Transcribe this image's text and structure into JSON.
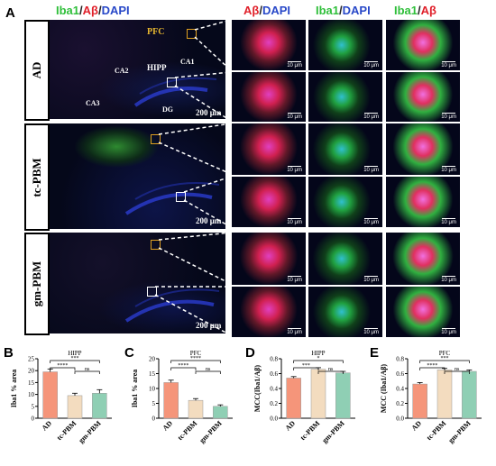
{
  "panel_a_label": "A",
  "column_headers": [
    {
      "parts": [
        {
          "text": "Iba1",
          "c": "green"
        },
        {
          "text": "/",
          "c": "slash"
        },
        {
          "text": "Aβ",
          "c": "red"
        },
        {
          "text": "/",
          "c": "slash"
        },
        {
          "text": "DAPI",
          "c": "blue"
        }
      ]
    },
    {
      "parts": [
        {
          "text": "Aβ",
          "c": "red"
        },
        {
          "text": "/",
          "c": "slash"
        },
        {
          "text": "DAPI",
          "c": "blue"
        }
      ]
    },
    {
      "parts": [
        {
          "text": "Iba1",
          "c": "green"
        },
        {
          "text": "/",
          "c": "slash"
        },
        {
          "text": "DAPI",
          "c": "blue"
        }
      ]
    },
    {
      "parts": [
        {
          "text": "Iba1",
          "c": "green"
        },
        {
          "text": "/",
          "c": "slash"
        },
        {
          "text": "Aβ",
          "c": "red"
        }
      ]
    }
  ],
  "rows": [
    {
      "group": "AD",
      "overview_scale": "200 μm",
      "region_labels": {
        "pfc": "PFC",
        "hipp": "HIPP",
        "ca1": "CA1",
        "ca2": "CA2",
        "ca3": "CA3",
        "dg": "DG"
      }
    },
    {
      "group": "tc-PBM",
      "overview_scale": "200 μm"
    },
    {
      "group": "gm-PBM",
      "overview_scale": "200 μm"
    }
  ],
  "tile_scale": "10 μm",
  "colors": {
    "red": "#e0202a",
    "green": "#2fbf3a",
    "blue": "#2848c8",
    "bar_ad": "#f5957a",
    "bar_tc": "#f3dcbf",
    "bar_gm": "#8fcfb4"
  },
  "chart_data": [
    {
      "panel": "B",
      "type": "bar",
      "title": "HIPP",
      "ylabel": "Iba1 % area",
      "categories": [
        "AD",
        "tc-PBM",
        "gm-PBM"
      ],
      "values": [
        19.5,
        9.5,
        10.5
      ],
      "errors": [
        1.2,
        1.0,
        1.5
      ],
      "ylim": [
        0,
        25
      ],
      "yticks": [
        0,
        5,
        10,
        15,
        20,
        25
      ],
      "ytick_labels": [
        "0",
        "5",
        "10",
        "15",
        "20",
        "25"
      ],
      "significance": [
        {
          "pair": [
            0,
            1
          ],
          "label": "****"
        },
        {
          "pair": [
            0,
            2
          ],
          "label": "***"
        },
        {
          "pair": [
            1,
            2
          ],
          "label": "ns"
        }
      ]
    },
    {
      "panel": "C",
      "type": "bar",
      "title": "PFC",
      "ylabel": "Iba1 % area",
      "categories": [
        "AD",
        "tc-PBM",
        "gm-PBM"
      ],
      "values": [
        12,
        6,
        4
      ],
      "errors": [
        0.8,
        0.6,
        0.5
      ],
      "ylim": [
        0,
        20
      ],
      "yticks": [
        0,
        5,
        10,
        15,
        20
      ],
      "ytick_labels": [
        "0",
        "5",
        "10",
        "15",
        "20"
      ],
      "significance": [
        {
          "pair": [
            0,
            1
          ],
          "label": "****"
        },
        {
          "pair": [
            0,
            2
          ],
          "label": "****"
        },
        {
          "pair": [
            1,
            2
          ],
          "label": "ns"
        }
      ]
    },
    {
      "panel": "D",
      "type": "bar",
      "title": "HIPP",
      "ylabel": "MCC(Iba1/Aβ)",
      "categories": [
        "AD",
        "tc-PBM",
        "gm-PBM"
      ],
      "values": [
        0.54,
        0.66,
        0.61
      ],
      "errors": [
        0.02,
        0.02,
        0.02
      ],
      "ylim": [
        0,
        0.8
      ],
      "yticks": [
        0,
        0.2,
        0.4,
        0.6,
        0.8
      ],
      "ytick_labels": [
        "0.0",
        "0.2",
        "0.4",
        "0.6",
        "0.8"
      ],
      "significance": [
        {
          "pair": [
            0,
            1
          ],
          "label": "***"
        },
        {
          "pair": [
            0,
            2
          ],
          "label": "*"
        },
        {
          "pair": [
            1,
            2
          ],
          "label": "ns"
        }
      ]
    },
    {
      "panel": "E",
      "type": "bar",
      "title": "PFC",
      "ylabel": "MCC (Iba1/Aβ)",
      "categories": [
        "AD",
        "tc-PBM",
        "gm-PBM"
      ],
      "values": [
        0.46,
        0.65,
        0.63
      ],
      "errors": [
        0.02,
        0.02,
        0.02
      ],
      "ylim": [
        0,
        0.8
      ],
      "yticks": [
        0,
        0.2,
        0.4,
        0.6,
        0.8
      ],
      "ytick_labels": [
        "0.0",
        "0.2",
        "0.4",
        "0.6",
        "0.8"
      ],
      "significance": [
        {
          "pair": [
            0,
            1
          ],
          "label": "****"
        },
        {
          "pair": [
            0,
            2
          ],
          "label": "***"
        },
        {
          "pair": [
            1,
            2
          ],
          "label": "ns"
        }
      ]
    }
  ]
}
